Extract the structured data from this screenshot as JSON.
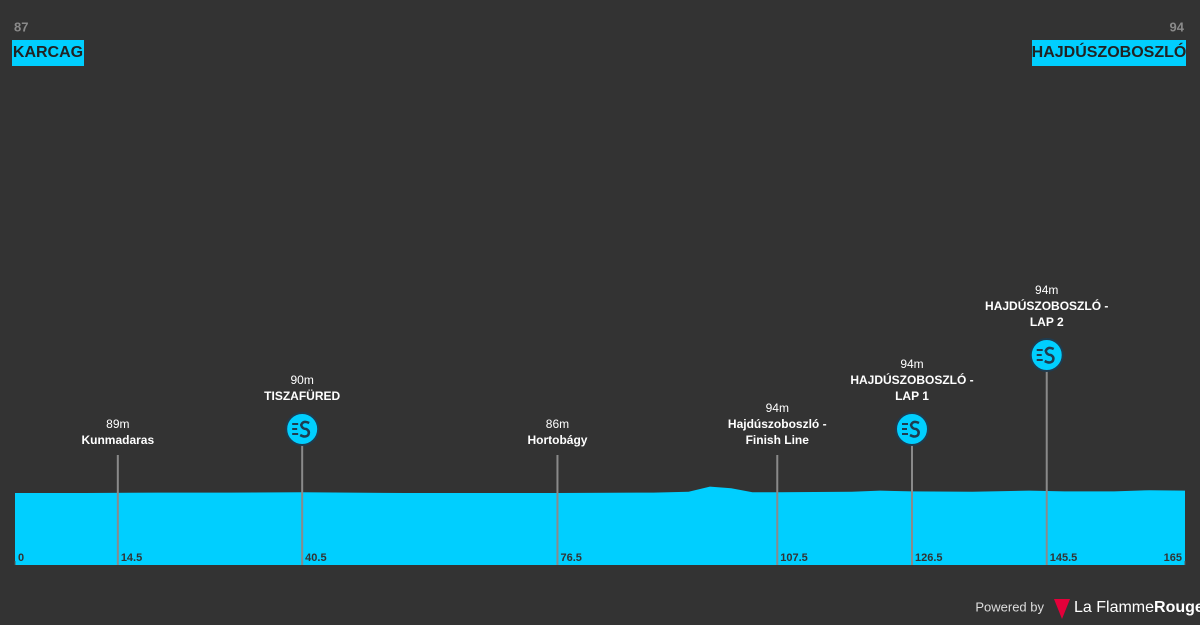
{
  "chart_data": {
    "type": "area",
    "color": "#00cfff",
    "start": {
      "elevation": 87,
      "name": "KARCAG"
    },
    "end": {
      "elevation": 94,
      "name": "HAJDÚSZOBOSZLÓ"
    },
    "xlim": [
      0,
      165
    ],
    "xticks": [
      0,
      14.5,
      40.5,
      76.5,
      107.5,
      126.5,
      145.5,
      165
    ],
    "ylim": [
      0,
      100
    ],
    "x": [
      0,
      10,
      20,
      30,
      40.5,
      55,
      65,
      76.5,
      90,
      95,
      98,
      101,
      104,
      107.5,
      118,
      122,
      126.5,
      135,
      143,
      148,
      155,
      160,
      165
    ],
    "values": [
      90,
      90,
      90.5,
      90.5,
      91,
      90,
      90,
      90,
      90.5,
      91.5,
      98,
      96,
      91,
      91,
      91.5,
      93,
      92,
      91.5,
      93,
      92,
      92,
      93.5,
      93
    ],
    "waypoints": [
      {
        "km": 14.5,
        "elevation": 89,
        "elevation_label": "89m",
        "name": [
          "Kunmadaras"
        ],
        "sprint": false
      },
      {
        "km": 40.5,
        "elevation": 90,
        "elevation_label": "90m",
        "name": [
          "TISZAFÜRED"
        ],
        "sprint": true
      },
      {
        "km": 76.5,
        "elevation": 86,
        "elevation_label": "86m",
        "name": [
          "Hortobágy"
        ],
        "sprint": false
      },
      {
        "km": 107.5,
        "elevation": 94,
        "elevation_label": "94m",
        "name": [
          "Hajdúszoboszló -",
          "Finish Line"
        ],
        "sprint": false
      },
      {
        "km": 126.5,
        "elevation": 94,
        "elevation_label": "94m",
        "name": [
          "HAJDÚSZOBOSZLÓ -",
          "LAP 1"
        ],
        "sprint": true
      },
      {
        "km": 145.5,
        "elevation": 94,
        "elevation_label": "94m",
        "name": [
          "HAJDÚSZOBOSZLÓ -",
          "LAP 2"
        ],
        "sprint": true
      }
    ]
  },
  "footer": {
    "powered_by": "Powered by",
    "brand_light": "La Flamme",
    "brand_bold": "Rouge"
  }
}
